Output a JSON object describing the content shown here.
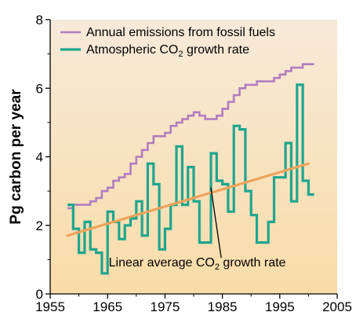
{
  "chart_data": {
    "type": "line",
    "title": "",
    "xlabel": "",
    "ylabel": "Pg carbon per year",
    "xlim": [
      1955,
      2005
    ],
    "ylim": [
      0,
      8
    ],
    "x_ticks": [
      1955,
      1965,
      1975,
      1985,
      1995,
      2005
    ],
    "y_ticks": [
      0,
      2,
      4,
      6,
      8
    ],
    "grid": false,
    "legend_position": "top-left",
    "background": {
      "top": "#f7ead9",
      "bottom": "#f9dca8"
    },
    "series": [
      {
        "name": "Annual emissions from fossil fuels",
        "style": "step",
        "color": "#b07dc1",
        "x": [
          1958,
          1959,
          1960,
          1961,
          1962,
          1963,
          1964,
          1965,
          1966,
          1967,
          1968,
          1969,
          1970,
          1971,
          1972,
          1973,
          1974,
          1975,
          1976,
          1977,
          1978,
          1979,
          1980,
          1981,
          1982,
          1983,
          1984,
          1985,
          1986,
          1987,
          1988,
          1989,
          1990,
          1991,
          1992,
          1993,
          1994,
          1995,
          1996,
          1997,
          1998,
          1999,
          2000
        ],
        "values": [
          2.5,
          2.6,
          2.6,
          2.6,
          2.7,
          2.8,
          3.0,
          3.1,
          3.3,
          3.4,
          3.5,
          3.8,
          4.0,
          4.2,
          4.4,
          4.6,
          4.6,
          4.7,
          4.9,
          5.0,
          5.1,
          5.2,
          5.3,
          5.2,
          5.1,
          5.1,
          5.2,
          5.4,
          5.6,
          5.8,
          6.0,
          6.1,
          6.1,
          6.2,
          6.2,
          6.2,
          6.3,
          6.4,
          6.5,
          6.6,
          6.6,
          6.7,
          6.7
        ]
      },
      {
        "name": "Atmospheric CO₂ growth rate",
        "name_parts": {
          "before": "Atmospheric CO",
          "sub": "2",
          "after": " growth rate"
        },
        "style": "step",
        "color": "#1fa58f",
        "x": [
          1958,
          1959,
          1960,
          1961,
          1962,
          1963,
          1964,
          1965,
          1966,
          1967,
          1968,
          1969,
          1970,
          1971,
          1972,
          1973,
          1974,
          1975,
          1976,
          1977,
          1978,
          1979,
          1980,
          1981,
          1982,
          1983,
          1984,
          1985,
          1986,
          1987,
          1988,
          1989,
          1990,
          1991,
          1992,
          1993,
          1994,
          1995,
          1996,
          1997,
          1998,
          1999,
          2000
        ],
        "values": [
          2.6,
          1.9,
          1.2,
          2.1,
          1.3,
          1.2,
          0.6,
          2.4,
          2.1,
          1.6,
          2.0,
          2.2,
          2.7,
          1.7,
          3.8,
          3.2,
          1.3,
          1.9,
          2.6,
          4.3,
          2.6,
          3.7,
          2.7,
          1.5,
          1.5,
          4.1,
          3.3,
          3.2,
          2.4,
          4.9,
          4.8,
          3.0,
          2.3,
          1.5,
          1.5,
          2.1,
          3.4,
          3.4,
          4.4,
          2.7,
          6.1,
          3.3,
          2.9
        ]
      },
      {
        "name": "Linear average CO₂ growth rate",
        "style": "trend",
        "color": "#f0a35a",
        "x": [
          1958,
          2000
        ],
        "values": [
          1.7,
          3.8
        ]
      }
    ],
    "annotations": [
      {
        "text": "Linear average CO₂ growth rate",
        "text_parts": {
          "before": "Linear average CO",
          "sub": "2",
          "after": " growth rate"
        },
        "points_to": {
          "x": 1983,
          "y": 3.1
        }
      }
    ]
  }
}
